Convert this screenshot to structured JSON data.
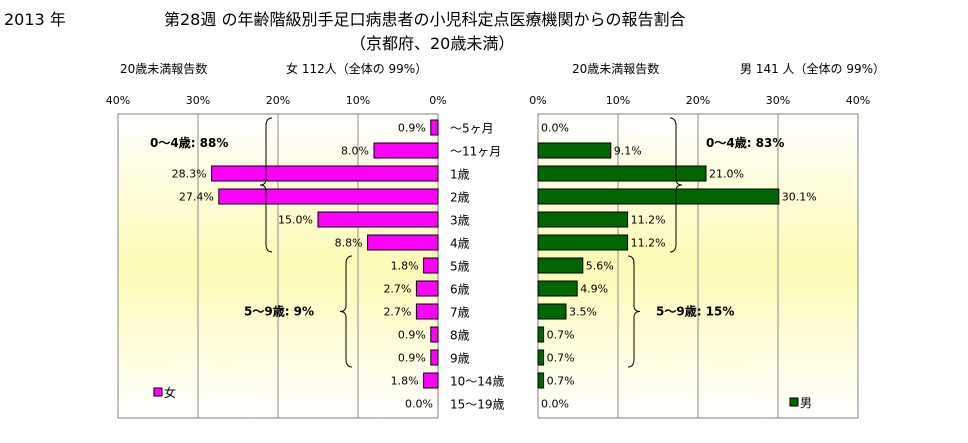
{
  "header": {
    "year": "2013 年",
    "title": "第28週 の年齢階級別手足口病患者の小児科定点医療機関からの報告割合",
    "subtitle": "（京都府、20歳未満）"
  },
  "chart_data": {
    "type": "bar",
    "orientation": "horizontal",
    "categories": [
      "～5ヶ月",
      "～11ヶ月",
      "1歳",
      "2歳",
      "3歳",
      "4歳",
      "5歳",
      "6歳",
      "7歳",
      "8歳",
      "9歳",
      "10～14歳",
      "15～19歳"
    ],
    "axis_ticks": [
      "40%",
      "30%",
      "20%",
      "10%",
      "0%"
    ],
    "axis_ticks_right": [
      "0%",
      "10%",
      "20%",
      "30%",
      "40%"
    ],
    "xlim": [
      0,
      40
    ],
    "series": [
      {
        "name": "女",
        "side": "left",
        "color": "#ff00ff",
        "header_label": "20歳未満報告数",
        "header_summary": "女  112人（全体の  99%）",
        "values": [
          0.9,
          8.0,
          28.3,
          27.4,
          15.0,
          8.8,
          1.8,
          2.7,
          2.7,
          0.9,
          0.9,
          1.8,
          0.0
        ],
        "value_labels": [
          "0.9%",
          "8.0%",
          "28.3%",
          "27.4%",
          "15.0%",
          "8.8%",
          "1.8%",
          "2.7%",
          "2.7%",
          "0.9%",
          "0.9%",
          "1.8%",
          "0.0%"
        ],
        "group_labels": [
          "0～4歳:  88%",
          "5～9歳:  9%"
        ]
      },
      {
        "name": "男",
        "side": "right",
        "color": "#006600",
        "header_label": "20歳未満報告数",
        "header_summary": "男  141 人（全体の  99%）",
        "values": [
          0.0,
          9.1,
          21.0,
          30.1,
          11.2,
          11.2,
          5.6,
          4.9,
          3.5,
          0.7,
          0.7,
          0.7,
          0.0
        ],
        "value_labels": [
          "0.0%",
          "9.1%",
          "21.0%",
          "30.1%",
          "11.2%",
          "11.2%",
          "5.6%",
          "4.9%",
          "3.5%",
          "0.7%",
          "0.7%",
          "0.7%",
          "0.0%"
        ],
        "group_labels": [
          "0～4歳:  83%",
          "5～9歳:  15%"
        ]
      }
    ],
    "grid": true,
    "legend": [
      "bottom-left",
      "bottom-right"
    ]
  }
}
